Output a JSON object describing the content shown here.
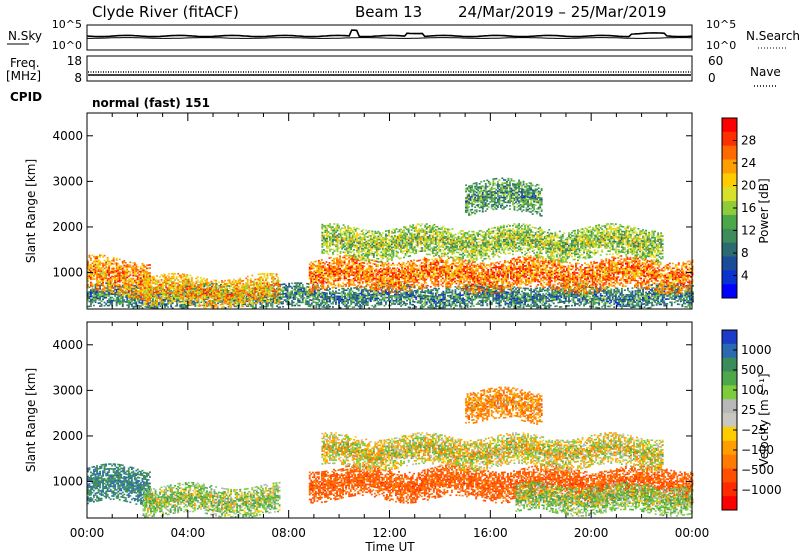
{
  "header": {
    "station": "Clyde River (fitACF)",
    "beam": "Beam 13",
    "date_range": "24/Mar/2019 – 25/Mar/2019"
  },
  "top_panels": {
    "nsky_label": "N.Sky",
    "nsky_ticks": [
      "10^5",
      "10^0"
    ],
    "nsearch_label": "N.Search",
    "nsearch_ticks": [
      "10^5",
      "10^0"
    ],
    "freq_label": "Freq.",
    "freq_unit": "[MHz]",
    "freq_ticks": [
      "18",
      "8"
    ],
    "nave_label": "Nave",
    "nave_ticks": [
      "60",
      "0"
    ],
    "cpid_label": "CPID",
    "cpid_value": "normal (fast) 151"
  },
  "axes": {
    "ylabel": "Slant Range [km]",
    "xlabel": "Time UT",
    "y_ticks": [
      "4000",
      "3000",
      "2000",
      "1000"
    ],
    "x_ticks": [
      "00:00",
      "04:00",
      "08:00",
      "12:00",
      "16:00",
      "20:00",
      "00:00"
    ]
  },
  "colorbars": {
    "power": {
      "label": "Power [dB]",
      "ticks": [
        "28",
        "24",
        "20",
        "16",
        "12",
        "8",
        "4"
      ],
      "colors": [
        "#ff0000",
        "#ff3000",
        "#ff6a00",
        "#ff9e00",
        "#ffcc00",
        "#d7e02a",
        "#8fcc3a",
        "#4aa84a",
        "#3d8c5a",
        "#2a6a70",
        "#1a4c9a",
        "#0a32d0",
        "#0000ff"
      ]
    },
    "velocity": {
      "label": "Velocity [m s⁻¹]",
      "ticks": [
        "1000",
        "500",
        "100",
        "25",
        "−25",
        "−100",
        "−500",
        "−1000"
      ],
      "colors": [
        "#1a3cc8",
        "#2a6ab0",
        "#3a8c5a",
        "#4ea84a",
        "#7ccc3c",
        "#b8b8b8",
        "#c8c8c0",
        "#ffcc00",
        "#ff9e00",
        "#ff7a00",
        "#ff5000",
        "#ff2a00",
        "#ff0000"
      ]
    }
  },
  "chart_data": [
    {
      "type": "heatmap",
      "panel": "power",
      "x_range_hours": [
        0,
        24
      ],
      "ylim_km": [
        200,
        4500
      ],
      "colorbar_range_db": [
        0,
        32
      ],
      "features": [
        {
          "name": "near-range band",
          "t_start": 0,
          "t_end": 24,
          "range_km": [
            200,
            700
          ],
          "value_db": 10
        },
        {
          "name": "early E/F echo",
          "t_start": 0,
          "t_end": 2.5,
          "range_km": [
            500,
            1300
          ],
          "value_db": 24
        },
        {
          "name": "early streaks",
          "t_start": 2.2,
          "t_end": 7.6,
          "range_km": [
            250,
            900
          ],
          "value_db": 22
        },
        {
          "name": "main lower band",
          "t_start": 8.8,
          "t_end": 24,
          "range_km": [
            600,
            1300
          ],
          "value_db": 25
        },
        {
          "name": "upper band",
          "t_start": 9.3,
          "t_end": 22.8,
          "range_km": [
            1300,
            2000
          ],
          "value_db": 16
        },
        {
          "name": "high-range patch",
          "t_start": 15.0,
          "t_end": 18.0,
          "range_km": [
            2300,
            3000
          ],
          "value_db": 12
        }
      ]
    },
    {
      "type": "heatmap",
      "panel": "velocity",
      "x_range_hours": [
        0,
        24
      ],
      "ylim_km": [
        200,
        4500
      ],
      "colorbar_range_ms": [
        -1000,
        1000
      ],
      "features": [
        {
          "name": "early echo",
          "t_start": 0,
          "t_end": 2.5,
          "range_km": [
            500,
            1300
          ],
          "value_ms": 400
        },
        {
          "name": "early streaks",
          "t_start": 2.2,
          "t_end": 7.6,
          "range_km": [
            250,
            900
          ],
          "value_ms": 80
        },
        {
          "name": "main lower band",
          "t_start": 8.8,
          "t_end": 24,
          "range_km": [
            600,
            1300
          ],
          "value_ms": -300
        },
        {
          "name": "late lower band",
          "t_start": 17.0,
          "t_end": 24,
          "range_km": [
            300,
            900
          ],
          "value_ms": 90
        },
        {
          "name": "upper band",
          "t_start": 9.3,
          "t_end": 22.8,
          "range_km": [
            1300,
            2000
          ],
          "value_ms": 0
        },
        {
          "name": "high-range patch",
          "t_start": 15.0,
          "t_end": 18.0,
          "range_km": [
            2300,
            3000
          ],
          "value_ms": -150
        }
      ]
    }
  ]
}
